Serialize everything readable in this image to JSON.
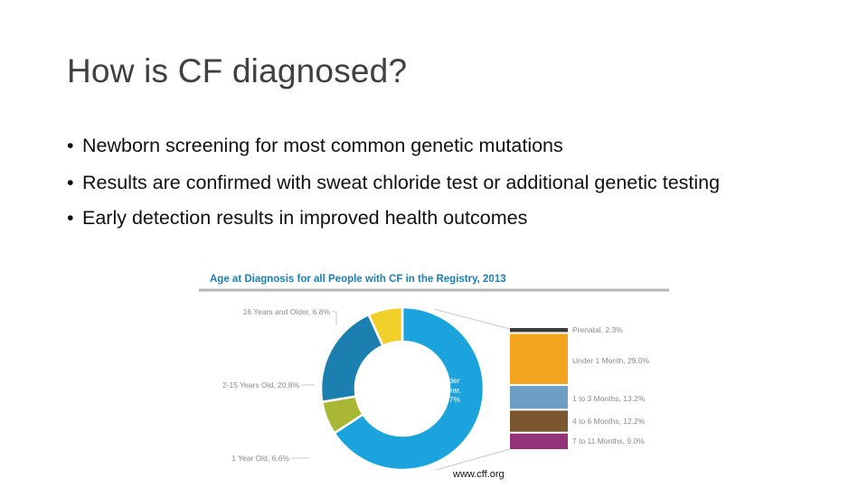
{
  "slide": {
    "title": "How is CF diagnosed?",
    "bullets": [
      "Newborn screening for most common genetic mutations",
      "Results are confirmed with sweat chloride test or additional genetic testing",
      "Early detection results in improved health outcomes"
    ],
    "bullet_glyph": "•",
    "source": "www.cff.org"
  },
  "chart_data": {
    "type": "pie",
    "title": "Age at Diagnosis for all People with CF in the Registry, 2013",
    "donut_slices": [
      {
        "label": "Under 1 Year, 65.7%",
        "value": 65.7,
        "color": "#1aa3dd"
      },
      {
        "label": "1 Year Old, 6.6%",
        "value": 6.6,
        "color": "#a9b735"
      },
      {
        "label": "2-15 Years Old, 20.8%",
        "value": 20.8,
        "color": "#1b7fb0"
      },
      {
        "label": "16 Years and Older, 6.8%",
        "value": 6.8,
        "color": "#f2d02a"
      }
    ],
    "center_label": [
      "Under",
      "1 Year,",
      "65.7%"
    ],
    "breakdown_of": "Under 1 Year",
    "breakdown": [
      {
        "label": "Prenatal, 2.3%",
        "value": 2.3,
        "color": "#3b3b3b"
      },
      {
        "label": "Under 1 Month, 29.0%",
        "value": 29.0,
        "color": "#f4a51f"
      },
      {
        "label": "1 to 3 Months, 13.2%",
        "value": 13.2,
        "color": "#6d9fc4"
      },
      {
        "label": "4 to 6 Months, 12.2%",
        "value": 12.2,
        "color": "#7a5730"
      },
      {
        "label": "7 to 11 Months, 9.0%",
        "value": 9.0,
        "color": "#93347a"
      }
    ],
    "colors": {
      "title_text": "#1b7fb0",
      "label_text": "#8a8a8a",
      "rule": "#b5b5b5",
      "connector": "#c8c8c8"
    }
  }
}
